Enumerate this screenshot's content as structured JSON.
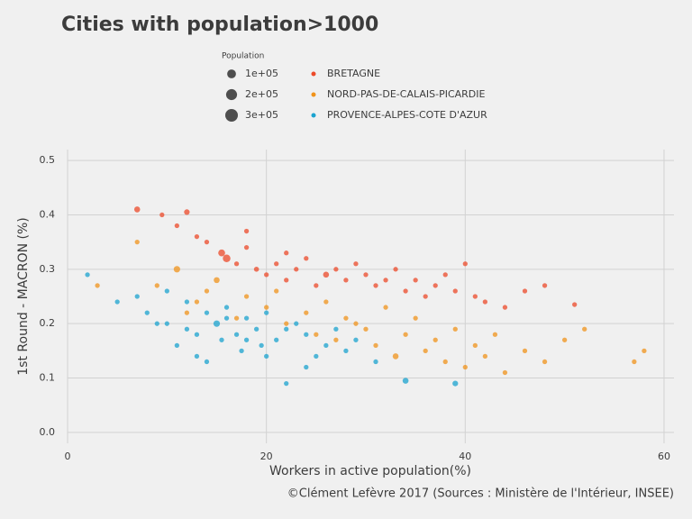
{
  "chart_data": {
    "type": "scatter",
    "title": "Cities with population>1000",
    "x_label": "Workers in active population(%)",
    "y_label": "1st Round - MACRON (%)",
    "caption": "©Clément Lefèvre 2017 (Sources : Ministère de l'Intérieur, INSEE)",
    "size_legend_title": "Population",
    "size_legend": [
      {
        "value": 100000,
        "label": "1e+05"
      },
      {
        "value": 200000,
        "label": "2e+05"
      },
      {
        "value": 300000,
        "label": "3e+05"
      }
    ],
    "xlim": [
      0,
      61
    ],
    "ylim": [
      -0.02,
      0.52
    ],
    "xticks": [
      0,
      20,
      40,
      60
    ],
    "yticks": [
      {
        "value": 0,
        "label": "0.0"
      },
      0.1,
      0.2,
      0.3,
      0.4,
      0.5
    ],
    "grid": true,
    "series": [
      {
        "name": "BRETAGNE",
        "color": "#ec4a2a",
        "x": [
          7,
          9.5,
          12,
          11,
          14,
          15.5,
          16,
          17,
          18,
          19,
          20,
          21,
          22,
          23,
          24,
          25,
          26,
          27,
          28,
          29,
          30,
          31,
          32,
          33,
          34,
          35,
          36,
          37,
          38,
          39,
          40,
          41,
          42,
          44,
          46,
          48,
          51,
          13,
          18,
          22
        ],
        "values": [
          0.41,
          0.4,
          0.405,
          0.38,
          0.35,
          0.33,
          0.32,
          0.31,
          0.34,
          0.3,
          0.29,
          0.31,
          0.28,
          0.3,
          0.32,
          0.27,
          0.29,
          0.3,
          0.28,
          0.31,
          0.29,
          0.27,
          0.28,
          0.3,
          0.26,
          0.28,
          0.25,
          0.27,
          0.29,
          0.26,
          0.31,
          0.25,
          0.24,
          0.23,
          0.26,
          0.27,
          0.235,
          0.36,
          0.37,
          0.33
        ],
        "sizes": [
          20000,
          5000,
          15000,
          5000,
          5000,
          40000,
          60000,
          5000,
          5000,
          8000,
          5000,
          5000,
          5000,
          5000,
          5000,
          5000,
          20000,
          5000,
          5000,
          5000,
          5000,
          5000,
          5000,
          5000,
          5000,
          5000,
          5000,
          5000,
          5000,
          5000,
          5000,
          5000,
          5000,
          5000,
          5000,
          5000,
          5000,
          5000,
          5000,
          5000
        ]
      },
      {
        "name": "NORD-PAS-DE-CALAIS-PICARDIE",
        "color": "#f0931b",
        "x": [
          3,
          7,
          9,
          11,
          12,
          13,
          14,
          15,
          17,
          18,
          20,
          21,
          22,
          24,
          25,
          26,
          27,
          28,
          29,
          30,
          31,
          32,
          33,
          34,
          35,
          36,
          37,
          38,
          39,
          40,
          41,
          42,
          43,
          44,
          46,
          48,
          50,
          52,
          57,
          58
        ],
        "values": [
          0.27,
          0.35,
          0.27,
          0.3,
          0.22,
          0.24,
          0.26,
          0.28,
          0.21,
          0.25,
          0.23,
          0.26,
          0.2,
          0.22,
          0.18,
          0.24,
          0.17,
          0.21,
          0.2,
          0.19,
          0.16,
          0.23,
          0.14,
          0.18,
          0.21,
          0.15,
          0.17,
          0.13,
          0.19,
          0.12,
          0.16,
          0.14,
          0.18,
          0.11,
          0.15,
          0.13,
          0.17,
          0.19,
          0.13,
          0.15
        ],
        "sizes": [
          5000,
          5000,
          5000,
          30000,
          5000,
          5000,
          5000,
          20000,
          5000,
          5000,
          5000,
          5000,
          5000,
          5000,
          5000,
          5000,
          5000,
          5000,
          5000,
          5000,
          5000,
          5000,
          20000,
          5000,
          5000,
          5000,
          5000,
          5000,
          5000,
          5000,
          5000,
          5000,
          5000,
          5000,
          5000,
          5000,
          5000,
          5000,
          5000,
          5000
        ]
      },
      {
        "name": "PROVENCE-ALPES-COTE D'AZUR",
        "color": "#1ba3cf",
        "x": [
          2,
          5,
          7,
          8,
          9,
          10,
          11,
          12,
          13,
          14,
          15,
          15.5,
          16,
          17,
          17.5,
          18,
          19,
          19.5,
          20,
          21,
          22,
          23,
          24,
          25,
          26,
          27,
          28,
          29,
          31,
          34,
          39,
          12,
          14,
          16,
          18,
          20,
          22,
          10,
          13,
          24
        ],
        "values": [
          0.29,
          0.24,
          0.25,
          0.22,
          0.2,
          0.26,
          0.16,
          0.19,
          0.14,
          0.22,
          0.2,
          0.17,
          0.23,
          0.18,
          0.15,
          0.21,
          0.19,
          0.16,
          0.22,
          0.17,
          0.09,
          0.2,
          0.18,
          0.14,
          0.16,
          0.19,
          0.15,
          0.17,
          0.13,
          0.095,
          0.09,
          0.24,
          0.13,
          0.21,
          0.17,
          0.14,
          0.19,
          0.2,
          0.18,
          0.12
        ],
        "sizes": [
          5000,
          5000,
          5000,
          5000,
          5000,
          5000,
          5000,
          5000,
          5000,
          5000,
          30000,
          5000,
          5000,
          5000,
          5000,
          5000,
          5000,
          5000,
          5000,
          5000,
          5000,
          5000,
          5000,
          5000,
          5000,
          5000,
          5000,
          5000,
          5000,
          20000,
          15000,
          5000,
          5000,
          5000,
          5000,
          5000,
          5000,
          5000,
          5000,
          5000
        ]
      }
    ]
  }
}
